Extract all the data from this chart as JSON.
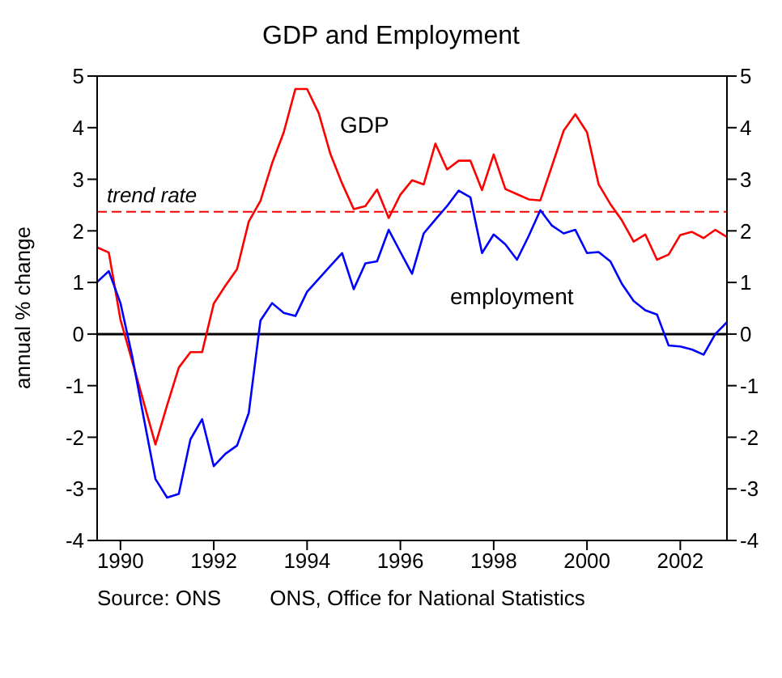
{
  "chart_data": {
    "type": "line",
    "title": "GDP and Employment",
    "ylabel": "annual % change",
    "x": [
      1989.5,
      1989.75,
      1990,
      1990.25,
      1990.5,
      1990.75,
      1991,
      1991.25,
      1991.5,
      1991.75,
      1992,
      1992.25,
      1992.5,
      1992.75,
      1993,
      1993.25,
      1993.5,
      1993.75,
      1994,
      1994.25,
      1994.5,
      1994.75,
      1995,
      1995.25,
      1995.5,
      1995.75,
      1996,
      1996.25,
      1996.5,
      1996.75,
      1997,
      1997.25,
      1997.5,
      1997.75,
      1998,
      1998.25,
      1998.5,
      1998.75,
      1999,
      1999.25,
      1999.5,
      1999.75,
      2000,
      2000.25,
      2000.5,
      2000.75,
      2001,
      2001.25,
      2001.5,
      2001.75,
      2002,
      2002.25,
      2002.5,
      2002.75,
      2003
    ],
    "series": [
      {
        "name": "GDP",
        "color": "#ff0000",
        "values": [
          1.68,
          1.58,
          0.28,
          -0.52,
          -1.33,
          -2.14,
          -1.38,
          -0.65,
          -0.35,
          -0.35,
          0.59,
          0.94,
          1.26,
          2.18,
          2.58,
          3.31,
          3.91,
          4.75,
          4.75,
          4.28,
          3.49,
          2.92,
          2.42,
          2.48,
          2.8,
          2.25,
          2.7,
          2.98,
          2.9,
          3.69,
          3.19,
          3.36,
          3.36,
          2.79,
          3.48,
          2.81,
          2.71,
          2.61,
          2.59,
          3.26,
          3.94,
          4.26,
          3.91,
          2.9,
          2.52,
          2.2,
          1.79,
          1.93,
          1.44,
          1.54,
          1.92,
          1.98,
          1.86,
          2.02,
          1.88
        ]
      },
      {
        "name": "employment",
        "color": "#0000ff",
        "values": [
          1.01,
          1.22,
          0.6,
          -0.42,
          -1.63,
          -2.81,
          -3.17,
          -3.1,
          -2.04,
          -1.65,
          -2.56,
          -2.32,
          -2.16,
          -1.53,
          0.26,
          0.6,
          0.41,
          0.35,
          0.82,
          1.07,
          1.32,
          1.57,
          0.87,
          1.37,
          1.41,
          2.02,
          1.59,
          1.17,
          1.95,
          2.22,
          2.48,
          2.78,
          2.65,
          1.57,
          1.93,
          1.74,
          1.44,
          1.9,
          2.4,
          2.1,
          1.95,
          2.02,
          1.57,
          1.59,
          1.41,
          0.97,
          0.64,
          0.46,
          0.38,
          -0.22,
          -0.24,
          -0.3,
          -0.4,
          0,
          0.23
        ]
      }
    ],
    "xlim": [
      1989.5,
      2003
    ],
    "xticks": [
      1990,
      1992,
      1994,
      1996,
      1998,
      2000,
      2002
    ],
    "ylim": [
      -4,
      5
    ],
    "yticks": [
      -4,
      -3,
      -2,
      -1,
      0,
      1,
      2,
      3,
      4,
      5
    ],
    "y2lim": [
      -4,
      5
    ],
    "y2ticks": [
      -4,
      -3,
      -2,
      -1,
      0,
      1,
      2,
      3,
      4,
      5
    ],
    "ref_lines": [
      {
        "axis": "y",
        "value": 2.37,
        "label": "trend rate",
        "color": "#ff0000",
        "line_style": "dashed"
      },
      {
        "axis": "y",
        "value": 0,
        "color": "#000000",
        "line_style": "solid"
      }
    ],
    "annotations": [
      "Source: ONS",
      "ONS, Office for National Statistics"
    ],
    "legend": false,
    "marker": "none",
    "line_style": "solid"
  }
}
